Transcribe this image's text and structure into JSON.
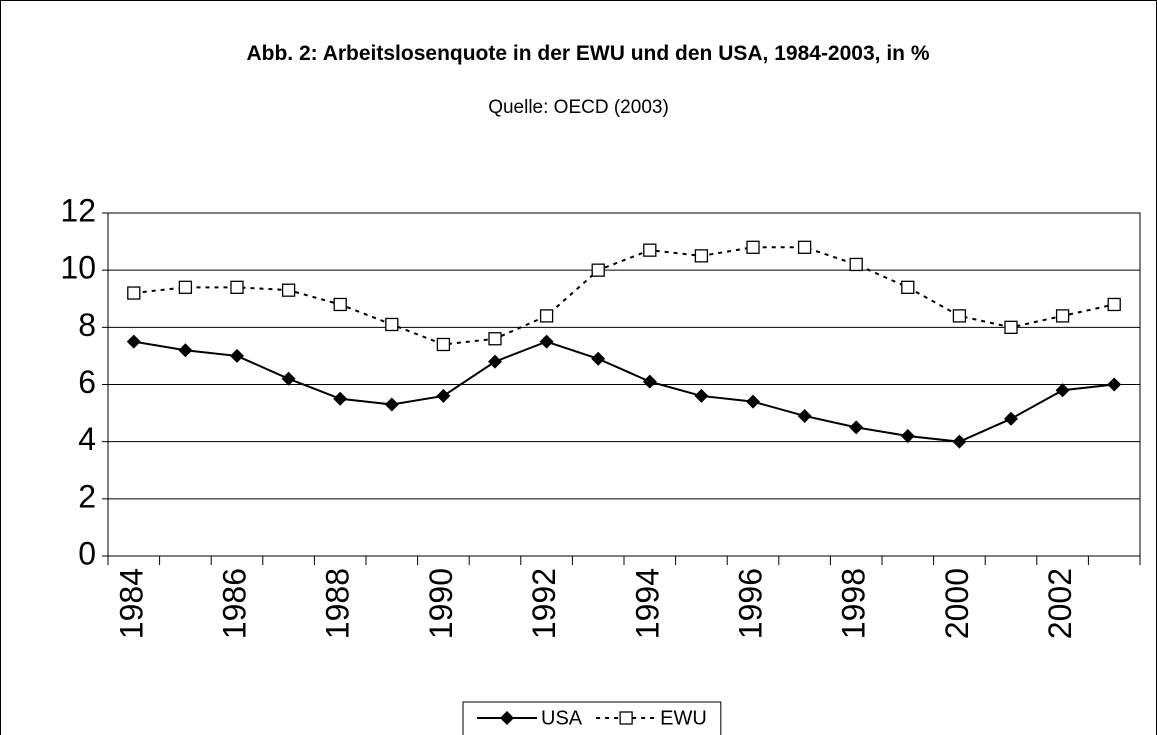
{
  "chart_data": {
    "type": "line",
    "title": "Abb. 2: Arbeitslosenquote in der EWU und den USA, 1984-2003, in %",
    "subtitle": "Quelle: OECD (2003)",
    "categories": [
      1984,
      null,
      1986,
      null,
      1988,
      null,
      1990,
      null,
      1992,
      null,
      1994,
      null,
      1996,
      null,
      1998,
      null,
      2000,
      null,
      2002,
      null
    ],
    "series": [
      {
        "name": "USA",
        "color": "#000000",
        "marker": "diamond",
        "dash": false,
        "values": [
          7.5,
          7.2,
          7.0,
          6.2,
          5.5,
          5.3,
          5.6,
          6.8,
          7.5,
          6.9,
          6.1,
          5.6,
          5.4,
          4.9,
          4.5,
          4.2,
          4.0,
          4.8,
          5.8,
          6.0
        ]
      },
      {
        "name": "EWU",
        "color": "#000000",
        "marker": "square",
        "dash": true,
        "values": [
          9.2,
          9.4,
          9.4,
          9.3,
          8.8,
          8.1,
          7.4,
          7.6,
          8.4,
          10.0,
          10.7,
          10.5,
          10.8,
          10.8,
          10.2,
          9.4,
          8.4,
          8.0,
          8.4,
          8.8
        ]
      }
    ],
    "ylim": [
      0,
      12
    ],
    "yticks": [
      0,
      2,
      4,
      6,
      8,
      10,
      12
    ],
    "grid": true,
    "legend": "bottom"
  }
}
